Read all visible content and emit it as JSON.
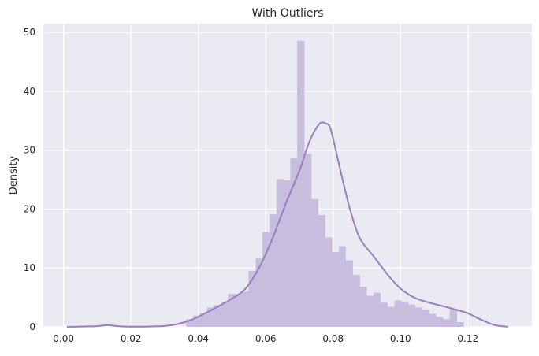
{
  "chart_data": {
    "type": "histogram",
    "title": "With Outliers",
    "xlabel": "",
    "ylabel": "Density",
    "xlim": [
      -0.006,
      0.139
    ],
    "ylim": [
      0,
      51.5
    ],
    "x_ticks": [
      "0.00",
      "0.02",
      "0.04",
      "0.06",
      "0.08",
      "0.10",
      "0.12"
    ],
    "y_ticks": [
      "0",
      "10",
      "20",
      "30",
      "40",
      "50"
    ],
    "grid": true,
    "style": "seaborn-darkgrid",
    "colors": {
      "background": "#eaeaf2",
      "grid": "#ffffff",
      "bar": "#c8bddf",
      "kde_line": "#9a7ebc"
    },
    "histogram": {
      "bin_edges": [
        0.0364,
        0.0385,
        0.0405,
        0.0426,
        0.0446,
        0.0467,
        0.0488,
        0.0508,
        0.0529,
        0.0549,
        0.057,
        0.059,
        0.0611,
        0.0632,
        0.0652,
        0.0673,
        0.0693,
        0.0714,
        0.0735,
        0.0755,
        0.0776,
        0.0796,
        0.0817,
        0.0837,
        0.0858,
        0.0879,
        0.0899,
        0.092,
        0.094,
        0.0961,
        0.0982,
        0.1002,
        0.1023,
        0.1043,
        0.1064,
        0.1084,
        0.1105,
        0.1126,
        0.1146,
        0.1167,
        0.1187,
        0.1208
      ],
      "densities": [
        1.3,
        1.9,
        2.3,
        3.3,
        3.7,
        4.3,
        5.6,
        5.6,
        6.0,
        9.5,
        11.6,
        16.1,
        19.1,
        25.1,
        24.9,
        28.7,
        48.6,
        29.4,
        21.7,
        19.0,
        15.2,
        12.7,
        13.7,
        11.3,
        8.8,
        6.8,
        5.3,
        5.8,
        4.1,
        3.4,
        4.5,
        4.2,
        3.8,
        3.3,
        2.9,
        2.2,
        1.7,
        1.3,
        3.0,
        0.8,
        0.0
      ]
    },
    "kde": {
      "x": [
        0.001,
        0.005,
        0.01,
        0.013,
        0.016,
        0.02,
        0.025,
        0.03,
        0.034,
        0.038,
        0.042,
        0.046,
        0.05,
        0.054,
        0.058,
        0.062,
        0.066,
        0.07,
        0.073,
        0.076,
        0.078,
        0.079,
        0.08,
        0.082,
        0.085,
        0.088,
        0.092,
        0.096,
        0.1,
        0.104,
        0.108,
        0.112,
        0.116,
        0.12,
        0.124,
        0.128,
        0.132
      ],
      "y": [
        0.0,
        0.05,
        0.12,
        0.3,
        0.12,
        0.03,
        0.05,
        0.15,
        0.5,
        1.2,
        2.3,
        3.5,
        4.8,
        6.5,
        10.0,
        15.0,
        21.0,
        26.5,
        31.5,
        34.5,
        34.5,
        34.0,
        32.0,
        27.0,
        20.0,
        15.0,
        12.0,
        9.0,
        6.5,
        5.0,
        4.2,
        3.6,
        3.0,
        2.3,
        1.2,
        0.3,
        0.02
      ]
    }
  }
}
